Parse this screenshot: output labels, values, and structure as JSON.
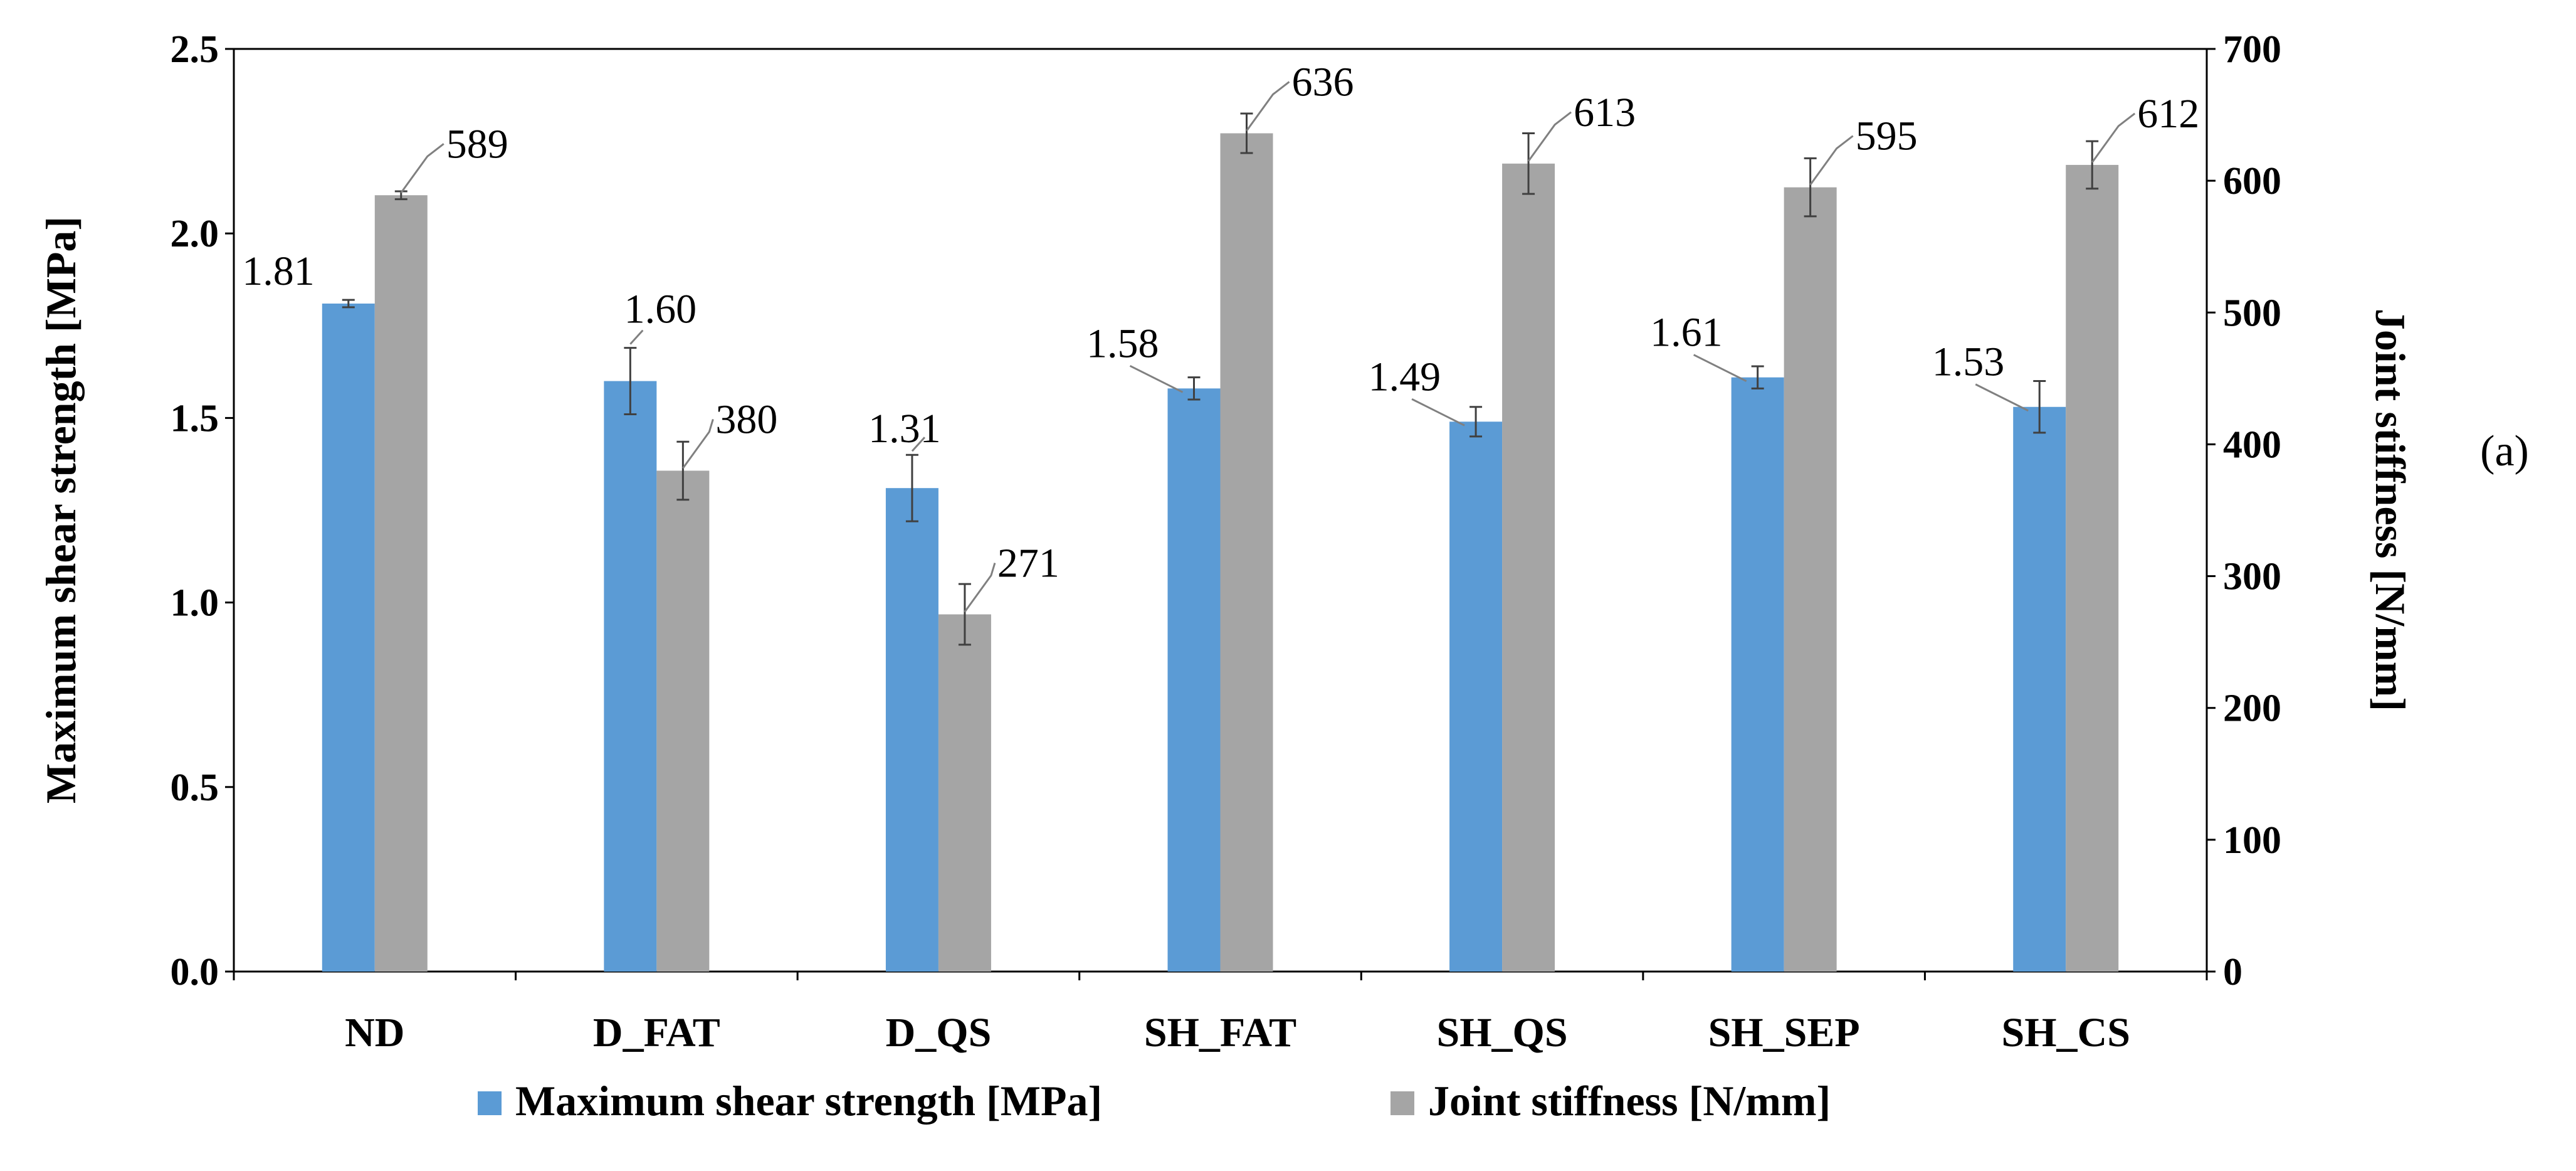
{
  "panel_label": "(a)",
  "chart_data": {
    "type": "bar",
    "categories": [
      "ND",
      "D_FAT",
      "D_QS",
      "SH_FAT",
      "SH_QS",
      "SH_SEP",
      "SH_CS"
    ],
    "series": [
      {
        "name": "Maximum shear strength [MPa]",
        "axis": "left",
        "color": "#5B9BD5",
        "values": [
          1.81,
          1.6,
          1.31,
          1.58,
          1.49,
          1.61,
          1.53
        ],
        "labels": [
          "1.81",
          "1.60",
          "1.31",
          "1.58",
          "1.49",
          "1.61",
          "1.53"
        ],
        "errors": [
          0.01,
          0.09,
          0.09,
          0.03,
          0.04,
          0.03,
          0.07
        ]
      },
      {
        "name": "Joint stiffness [N/mm]",
        "axis": "right",
        "color": "#A5A5A5",
        "values": [
          589,
          380,
          271,
          636,
          613,
          595,
          612
        ],
        "labels": [
          "589",
          "380",
          "271",
          "636",
          "613",
          "595",
          "612"
        ],
        "errors": [
          3,
          22,
          23,
          15,
          23,
          22,
          18
        ]
      }
    ],
    "ylabel": "Maximum shear strength [MPa]",
    "y2label": "Joint stiffness [N/mm]",
    "ylim": [
      0,
      2.5
    ],
    "y2lim": [
      0,
      700
    ],
    "yticks": [
      "0.0",
      "0.5",
      "1.0",
      "1.5",
      "2.0",
      "2.5"
    ],
    "y2ticks": [
      "0",
      "100",
      "200",
      "300",
      "400",
      "500",
      "600",
      "700"
    ],
    "grid": false,
    "legend_position": "bottom"
  }
}
